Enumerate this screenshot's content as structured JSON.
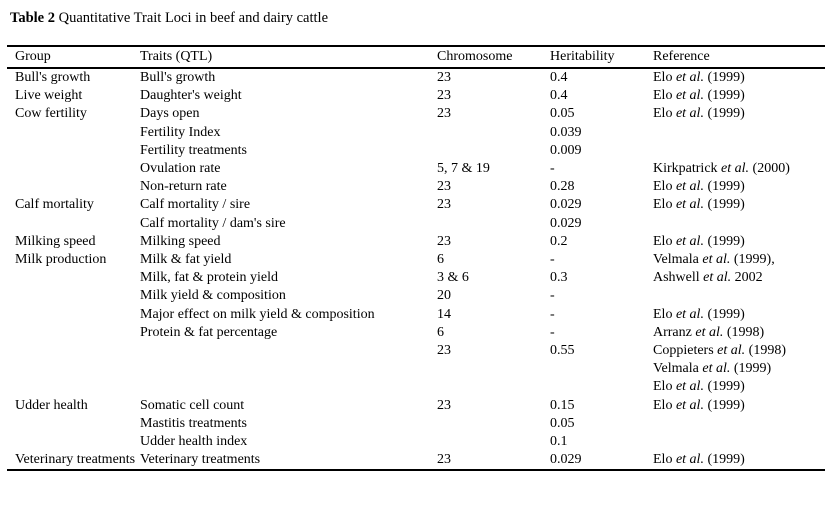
{
  "title": {
    "label": "Table 2",
    "text": "Quantitative Trait Loci in beef and dairy cattle"
  },
  "table": {
    "columns": [
      "Group",
      "Traits (QTL)",
      "Chromosome",
      "Heritability",
      "Reference"
    ],
    "rows": [
      {
        "group": "Bull's growth",
        "trait": "Bull's growth",
        "chromosome": "23",
        "heritability": "0.4",
        "ref_a": "Elo",
        "ref_et": "et al.",
        "ref_b": "(1999)"
      },
      {
        "group": "Live weight",
        "trait": "Daughter's weight",
        "chromosome": "23",
        "heritability": "0.4",
        "ref_a": "Elo",
        "ref_et": "et al.",
        "ref_b": "(1999)"
      },
      {
        "group": "Cow fertility",
        "trait": "Days open",
        "chromosome": "23",
        "heritability": "0.05",
        "ref_a": "Elo",
        "ref_et": "et al.",
        "ref_b": "(1999)"
      },
      {
        "group": "",
        "trait": "Fertility Index",
        "chromosome": "",
        "heritability": "0.039",
        "ref_a": "",
        "ref_et": "",
        "ref_b": ""
      },
      {
        "group": "",
        "trait": "Fertility treatments",
        "chromosome": "",
        "heritability": "0.009",
        "ref_a": "",
        "ref_et": "",
        "ref_b": ""
      },
      {
        "group": "",
        "trait": "Ovulation rate",
        "chromosome": "5, 7 & 19",
        "heritability": "-",
        "ref_a": "Kirkpatrick",
        "ref_et": "et al.",
        "ref_b": "(2000)"
      },
      {
        "group": "",
        "trait": "Non-return rate",
        "chromosome": "23",
        "heritability": "0.28",
        "ref_a": "Elo",
        "ref_et": "et al.",
        "ref_b": "(1999)"
      },
      {
        "group": "Calf mortality",
        "trait": "Calf mortality / sire",
        "chromosome": "23",
        "heritability": "0.029",
        "ref_a": "Elo",
        "ref_et": "et al.",
        "ref_b": "(1999)"
      },
      {
        "group": "",
        "trait": "Calf mortality / dam's sire",
        "chromosome": "",
        "heritability": "0.029",
        "ref_a": "",
        "ref_et": "",
        "ref_b": ""
      },
      {
        "group": "Milking speed",
        "trait": "Milking speed",
        "chromosome": "23",
        "heritability": "0.2",
        "ref_a": "Elo",
        "ref_et": "et al.",
        "ref_b": "(1999)"
      },
      {
        "group": "Milk production",
        "trait": "Milk & fat yield",
        "chromosome": "6",
        "heritability": "-",
        "ref_a": "Velmala",
        "ref_et": "et al.",
        "ref_b": "(1999),"
      },
      {
        "group": "",
        "trait": "Milk, fat & protein yield",
        "chromosome": "3 & 6",
        "heritability": "0.3",
        "ref_a": "Ashwell",
        "ref_et": "et al.",
        "ref_b": "2002"
      },
      {
        "group": "",
        "trait": "Milk yield & composition",
        "chromosome": "20",
        "heritability": "-",
        "ref_a": "",
        "ref_et": "",
        "ref_b": ""
      },
      {
        "group": "",
        "trait": "Major effect on milk yield & composition",
        "chromosome": "14",
        "heritability": "-",
        "ref_a": "Elo",
        "ref_et": "et al.",
        "ref_b": "(1999)"
      },
      {
        "group": "",
        "trait": "Protein & fat percentage",
        "chromosome": "6",
        "heritability": "-",
        "ref_a": "Arranz",
        "ref_et": "et al.",
        "ref_b": "(1998)"
      },
      {
        "group": "",
        "trait": "",
        "chromosome": "23",
        "heritability": "0.55",
        "ref_a": "Coppieters",
        "ref_et": "et al.",
        "ref_b": "(1998)"
      },
      {
        "group": "",
        "trait": "",
        "chromosome": "",
        "heritability": "",
        "ref_a": "Velmala",
        "ref_et": "et al.",
        "ref_b": "(1999)"
      },
      {
        "group": "",
        "trait": "",
        "chromosome": "",
        "heritability": "",
        "ref_a": "Elo",
        "ref_et": "et al.",
        "ref_b": "(1999)"
      },
      {
        "group": "Udder health",
        "trait": "Somatic cell count",
        "chromosome": "23",
        "heritability": "0.15",
        "ref_a": "Elo",
        "ref_et": "et al.",
        "ref_b": "(1999)"
      },
      {
        "group": "",
        "trait": "Mastitis treatments",
        "chromosome": "",
        "heritability": "0.05",
        "ref_a": "",
        "ref_et": "",
        "ref_b": ""
      },
      {
        "group": "",
        "trait": "Udder health index",
        "chromosome": "",
        "heritability": "0.1",
        "ref_a": "",
        "ref_et": "",
        "ref_b": ""
      },
      {
        "group": "Veterinary treatments",
        "trait": "Veterinary treatments",
        "chromosome": "23",
        "heritability": "0.029",
        "ref_a": "Elo",
        "ref_et": "et al.",
        "ref_b": "(1999)"
      }
    ]
  }
}
